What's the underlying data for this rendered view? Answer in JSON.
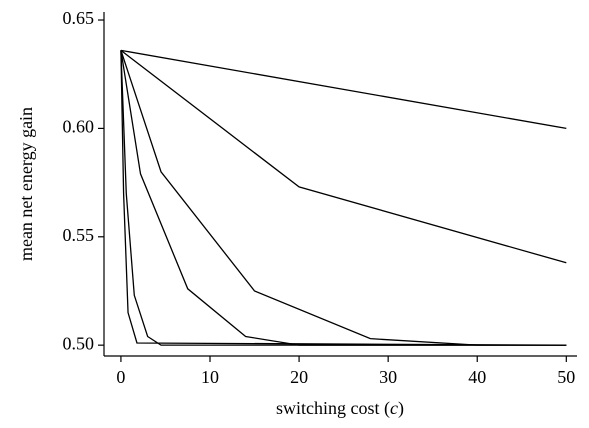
{
  "chart_data": {
    "type": "line",
    "xlabel": [
      "switching cost (",
      "c",
      ")"
    ],
    "ylabel": "mean net energy gain",
    "series": [
      {
        "color": "#000000",
        "x": [
          0,
          50
        ],
        "values": [
          0.636,
          0.6
        ]
      },
      {
        "color": "#000000",
        "x": [
          0,
          20,
          50
        ],
        "values": [
          0.636,
          0.573,
          0.538
        ]
      },
      {
        "color": "#000000",
        "x": [
          0,
          4.5,
          15,
          28,
          40,
          50
        ],
        "values": [
          0.636,
          0.58,
          0.525,
          0.503,
          0.5,
          0.5
        ]
      },
      {
        "color": "#000000",
        "x": [
          0,
          2.2,
          7.5,
          14,
          20,
          50
        ],
        "values": [
          0.636,
          0.579,
          0.526,
          0.504,
          0.5,
          0.5
        ]
      },
      {
        "color": "#000000",
        "x": [
          0,
          0.6,
          1.5,
          3,
          4.5,
          50
        ],
        "values": [
          0.636,
          0.57,
          0.523,
          0.504,
          0.5,
          0.5
        ]
      },
      {
        "color": "#000000",
        "x": [
          0,
          0.3,
          0.8,
          1.8,
          50
        ],
        "values": [
          0.636,
          0.57,
          0.515,
          0.501,
          0.5
        ]
      }
    ],
    "xlim": [
      -1.9,
      51.2
    ],
    "ylim": [
      0.495,
      0.6537
    ],
    "xticks": [
      0,
      10,
      20,
      30,
      40,
      50
    ],
    "yticks": [
      {
        "value": 0.5,
        "label": "0.50"
      },
      {
        "value": 0.55,
        "label": "0.55"
      },
      {
        "value": 0.6,
        "label": "0.60"
      },
      {
        "value": 0.65,
        "label": "0.65"
      }
    ],
    "grid": false
  }
}
